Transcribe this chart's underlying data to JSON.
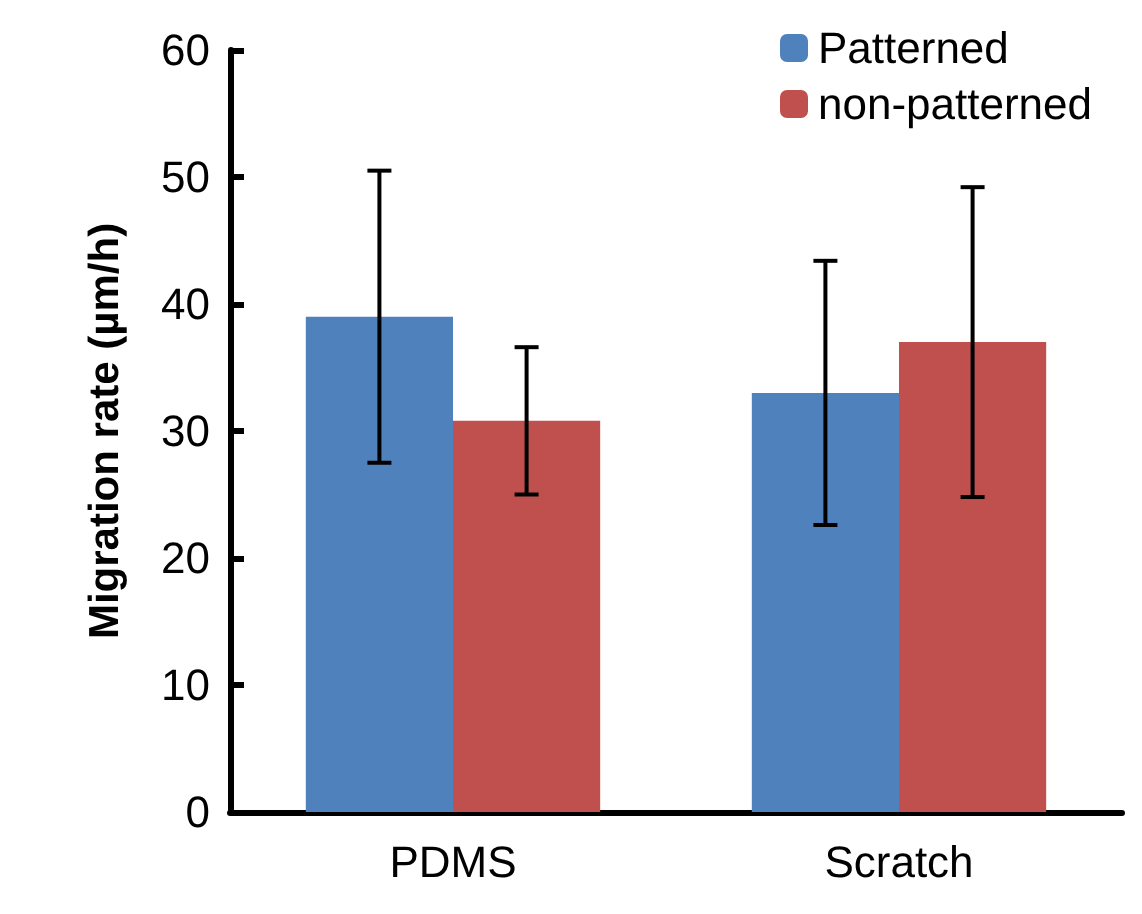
{
  "chart_data": {
    "type": "bar",
    "ylabel": "Migration rate (µm/h)",
    "categories": [
      "PDMS",
      "Scratch"
    ],
    "series": [
      {
        "name": "Patterned",
        "color": "#4f81bd",
        "values": [
          39.0,
          33.0
        ],
        "errors": [
          11.5,
          10.4
        ]
      },
      {
        "name": "non-patterned",
        "color": "#c0504d",
        "values": [
          30.8,
          37.0
        ],
        "errors": [
          5.8,
          12.2
        ]
      }
    ],
    "ylim": [
      0,
      60
    ],
    "yticks": [
      0,
      10,
      20,
      30,
      40,
      50,
      60
    ],
    "grid": false,
    "legend": "top right"
  }
}
